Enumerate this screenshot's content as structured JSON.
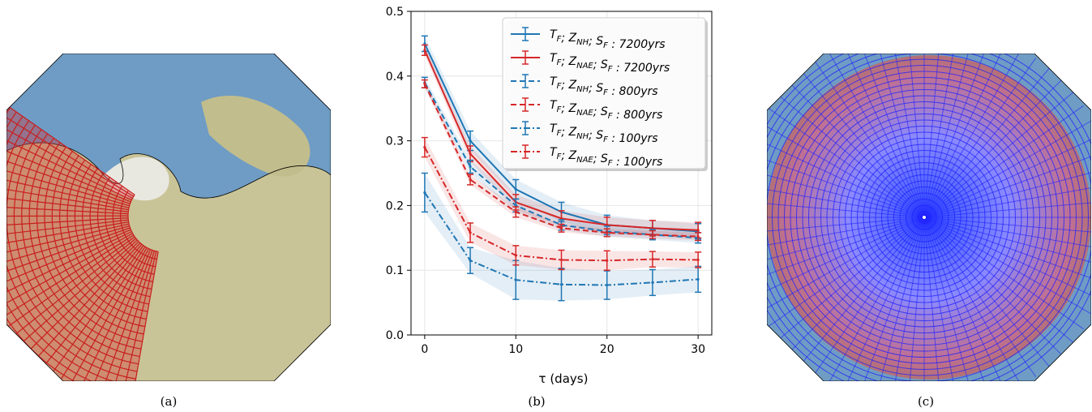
{
  "captions": {
    "a": "(a)",
    "b": "(b)",
    "c": "(c)"
  },
  "colors": {
    "blue": "#1f77b4",
    "red": "#d62728",
    "ocean": "#6f9cc4",
    "land": "#c9c497",
    "grid_a": "#d62728",
    "grid_c": "#1f1fff"
  },
  "chart_data": {
    "type": "line",
    "title": "",
    "xlabel": "τ (days)",
    "ylabel": "",
    "xlim": [
      -1.5,
      31.5
    ],
    "ylim": [
      0.0,
      0.5
    ],
    "xticks": [
      0,
      10,
      20,
      30
    ],
    "yticks": [
      0.0,
      0.1,
      0.2,
      0.3,
      0.4,
      0.5
    ],
    "grid": true,
    "legend_position": "top-right",
    "x": [
      0,
      5,
      10,
      15,
      20,
      25,
      30
    ],
    "series": [
      {
        "name": "T_F; Z_NH; S_F : 7200yrs",
        "legend": {
          "a": "T",
          "as": "F",
          "b": "; Z",
          "bs": "NH",
          "c": "; S",
          "cs": "F",
          "d": " : 7200yrs"
        },
        "color": "#1f77b4",
        "dash": "solid",
        "values": [
          0.45,
          0.3,
          0.225,
          0.19,
          0.17,
          0.165,
          0.16
        ],
        "errors": [
          0.012,
          0.015,
          0.015,
          0.015,
          0.015,
          0.012,
          0.012
        ]
      },
      {
        "name": "T_F; Z_NAE; S_F : 7200yrs",
        "legend": {
          "a": "T",
          "as": "F",
          "b": "; Z",
          "bs": "NAE",
          "c": "; S",
          "cs": "F",
          "d": " : 7200yrs"
        },
        "color": "#d62728",
        "dash": "solid",
        "values": [
          0.44,
          0.28,
          0.205,
          0.18,
          0.17,
          0.165,
          0.162
        ],
        "errors": [
          0.008,
          0.012,
          0.012,
          0.012,
          0.012,
          0.012,
          0.012
        ]
      },
      {
        "name": "T_F; Z_NH; S_F : 800yrs",
        "legend": {
          "a": "T",
          "as": "F",
          "b": "; Z",
          "bs": "NH",
          "c": "; S",
          "cs": "F",
          "d": " : 800yrs"
        },
        "color": "#1f77b4",
        "dash": "dashed",
        "values": [
          0.39,
          0.26,
          0.2,
          0.17,
          0.16,
          0.155,
          0.15
        ],
        "errors": [
          0.008,
          0.01,
          0.01,
          0.008,
          0.008,
          0.008,
          0.008
        ]
      },
      {
        "name": "T_F; Z_NAE; S_F : 800yrs",
        "legend": {
          "a": "T",
          "as": "F",
          "b": "; Z",
          "bs": "NAE",
          "c": "; S",
          "cs": "F",
          "d": " : 800yrs"
        },
        "color": "#d62728",
        "dash": "dashed",
        "values": [
          0.388,
          0.24,
          0.19,
          0.165,
          0.158,
          0.155,
          0.152
        ],
        "errors": [
          0.006,
          0.008,
          0.008,
          0.006,
          0.006,
          0.006,
          0.006
        ]
      },
      {
        "name": "T_F; Z_NH; S_F : 100yrs",
        "legend": {
          "a": "T",
          "as": "F",
          "b": "; Z",
          "bs": "NH",
          "c": "; S",
          "cs": "F",
          "d": " : 100yrs"
        },
        "color": "#1f77b4",
        "dash": "dashdot",
        "values": [
          0.22,
          0.115,
          0.085,
          0.078,
          0.077,
          0.081,
          0.086
        ],
        "errors": [
          0.03,
          0.02,
          0.03,
          0.025,
          0.022,
          0.02,
          0.02
        ]
      },
      {
        "name": "T_F; Z_NAE; S_F : 100yrs",
        "legend": {
          "a": "T",
          "as": "F",
          "b": "; Z",
          "bs": "NAE",
          "c": "; S",
          "cs": "F",
          "d": " : 100yrs"
        },
        "color": "#d62728",
        "dash": "dashdot",
        "values": [
          0.29,
          0.158,
          0.123,
          0.116,
          0.115,
          0.117,
          0.116
        ],
        "errors": [
          0.015,
          0.015,
          0.015,
          0.015,
          0.015,
          0.012,
          0.012
        ]
      }
    ]
  }
}
